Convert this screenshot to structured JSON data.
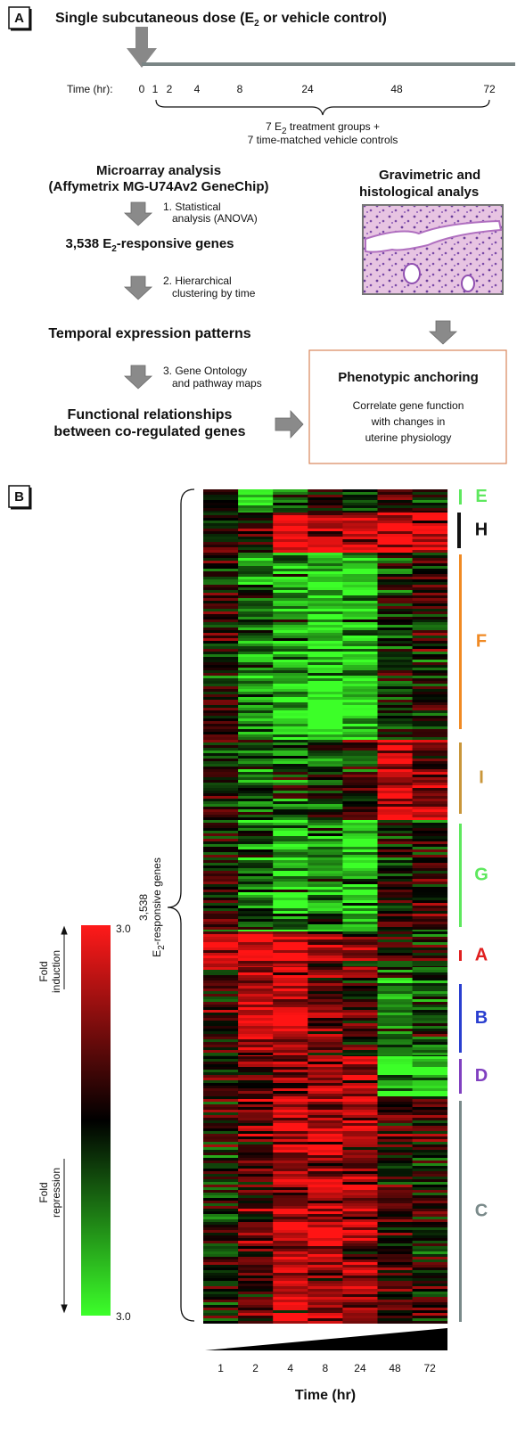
{
  "panel_a": {
    "label": "A",
    "title": {
      "pre": "Single subcutaneous dose (E",
      "sub": "2",
      "post": " or vehicle control)"
    },
    "time_label": "Time (hr):",
    "time_ticks": [
      "0",
      "1",
      "2",
      "4",
      "8",
      "24",
      "48",
      "72"
    ],
    "groups": {
      "line1": {
        "pre": "7 E",
        "sub": "2",
        "post": " treatment groups +"
      },
      "line2": "7 time-matched vehicle controls"
    },
    "microarray": [
      "Microarray analysis",
      "(Affymetrix MG-U74Av2 GeneChip)"
    ],
    "step1": [
      "1. Statistical",
      "analysis (ANOVA)"
    ],
    "genes": {
      "pre": "3,538 E",
      "sub": "2",
      "post": "-responsive genes"
    },
    "step2": [
      "2. Hierarchical",
      "clustering by time"
    ],
    "patterns": "Temporal expression patterns",
    "step3": [
      "3. Gene Ontology",
      "and pathway maps"
    ],
    "functional": [
      "Functional relationships",
      "between co-regulated genes"
    ],
    "gravimetric": [
      "Gravimetric and",
      "histological analys"
    ],
    "anchoring": {
      "title": "Phenotypic anchoring",
      "text": [
        "Correlate gene function",
        "with changes in",
        "uterine physiology"
      ]
    }
  },
  "panel_b": {
    "label": "B",
    "brace_label": {
      "count": "3,538",
      "pre": "E",
      "sub": "2",
      "post": "-responsive genes"
    },
    "clusters": [
      {
        "name": "E",
        "color": "#5ee85e"
      },
      {
        "name": "H",
        "color": "#111111"
      },
      {
        "name": "F",
        "color": "#f08a24"
      },
      {
        "name": "I",
        "color": "#c9963a"
      },
      {
        "name": "G",
        "color": "#5ee85e"
      },
      {
        "name": "A",
        "color": "#e02020"
      },
      {
        "name": "B",
        "color": "#2a3fd0"
      },
      {
        "name": "D",
        "color": "#8040c0"
      },
      {
        "name": "C",
        "color": "#7a8a8a"
      }
    ],
    "legend": {
      "max": "3.0",
      "min": "3.0",
      "induction": [
        "Fold",
        "induction"
      ],
      "repression": [
        "Fold",
        "repression"
      ]
    },
    "time_ticks": [
      "1",
      "2",
      "4",
      "8",
      "24",
      "48",
      "72"
    ],
    "time_label": "Time (hr)"
  }
}
